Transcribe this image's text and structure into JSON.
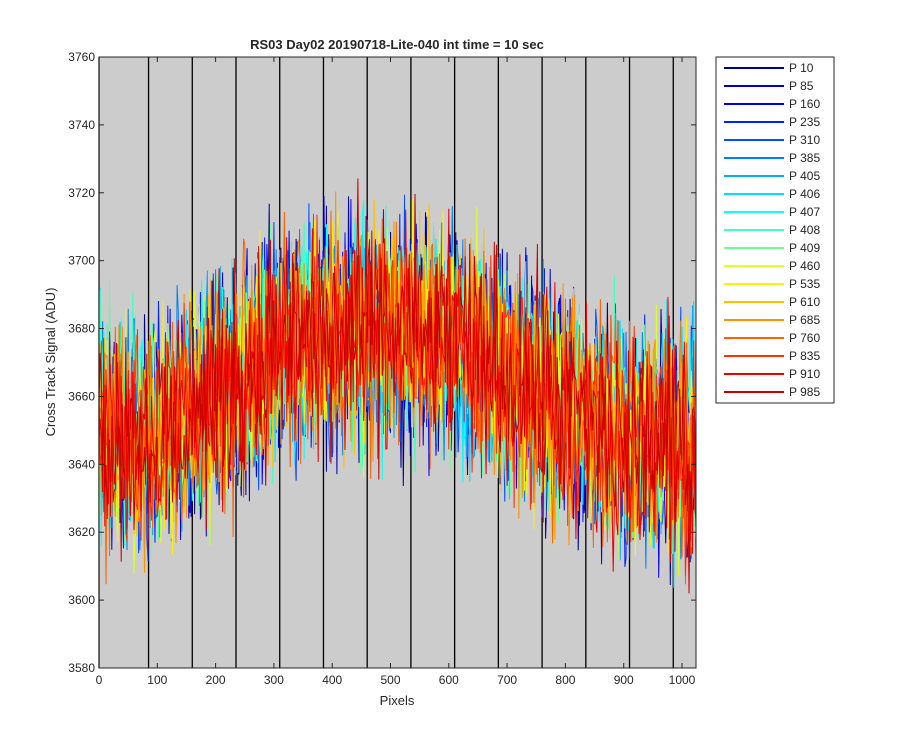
{
  "chart_data": {
    "type": "line",
    "title": "RS03 Day02 20190718-Lite-040 int time = 10 sec",
    "xlabel": "Pixels",
    "ylabel": "Cross Track Signal (ADU)",
    "xlim": [
      0,
      1024
    ],
    "ylim": [
      3580,
      3760
    ],
    "xticks": [
      0,
      100,
      200,
      300,
      400,
      500,
      600,
      700,
      800,
      900,
      1000
    ],
    "yticks": [
      3580,
      3600,
      3620,
      3640,
      3660,
      3680,
      3700,
      3720,
      3740,
      3760
    ],
    "grid": false,
    "legend_position": "outside-right",
    "background_color": "#cccccc",
    "vertical_markers": [
      0,
      85,
      160,
      235,
      310,
      385,
      460,
      535,
      610,
      685,
      760,
      835,
      910,
      985
    ],
    "noise_amplitude": 16,
    "series": [
      {
        "name": "P 10",
        "color": "#00008f",
        "x": [
          0,
          100,
          200,
          300,
          400,
          500,
          600,
          700,
          800,
          900,
          1024
        ],
        "y": [
          3650,
          3648,
          3660,
          3675,
          3678,
          3680,
          3676,
          3668,
          3655,
          3648,
          3645
        ]
      },
      {
        "name": "P 85",
        "color": "#0000bf",
        "x": [
          0,
          100,
          200,
          300,
          400,
          500,
          600,
          700,
          800,
          900,
          1024
        ],
        "y": [
          3649,
          3647,
          3659,
          3674,
          3677,
          3679,
          3675,
          3667,
          3654,
          3647,
          3644
        ]
      },
      {
        "name": "P 160",
        "color": "#0000ef",
        "x": [
          0,
          100,
          200,
          300,
          400,
          500,
          600,
          700,
          800,
          900,
          1024
        ],
        "y": [
          3651,
          3649,
          3661,
          3675,
          3679,
          3680,
          3676,
          3668,
          3656,
          3648,
          3646
        ]
      },
      {
        "name": "P 235",
        "color": "#0020ff",
        "x": [
          0,
          100,
          200,
          300,
          400,
          500,
          600,
          700,
          800,
          900,
          1024
        ],
        "y": [
          3650,
          3648,
          3660,
          3674,
          3678,
          3679,
          3675,
          3667,
          3655,
          3647,
          3645
        ]
      },
      {
        "name": "P 310",
        "color": "#0050ff",
        "x": [
          0,
          100,
          200,
          300,
          400,
          500,
          600,
          700,
          800,
          900,
          1024
        ],
        "y": [
          3649,
          3648,
          3659,
          3675,
          3677,
          3680,
          3676,
          3668,
          3654,
          3648,
          3644
        ]
      },
      {
        "name": "P 385",
        "color": "#0080ff",
        "x": [
          0,
          100,
          200,
          300,
          400,
          500,
          600,
          700,
          800,
          900,
          1024
        ],
        "y": [
          3651,
          3649,
          3661,
          3676,
          3679,
          3681,
          3677,
          3669,
          3656,
          3649,
          3646
        ]
      },
      {
        "name": "P 405",
        "color": "#00afff",
        "x": [
          0,
          100,
          200,
          300,
          400,
          500,
          600,
          700,
          800,
          900,
          1024
        ],
        "y": [
          3650,
          3647,
          3660,
          3675,
          3678,
          3680,
          3676,
          3668,
          3655,
          3648,
          3645
        ]
      },
      {
        "name": "P 406",
        "color": "#00dfff",
        "x": [
          0,
          100,
          200,
          300,
          400,
          500,
          600,
          700,
          800,
          900,
          1024
        ],
        "y": [
          3650,
          3648,
          3660,
          3674,
          3678,
          3679,
          3675,
          3667,
          3655,
          3647,
          3645
        ]
      },
      {
        "name": "P 407",
        "color": "#10ffef",
        "x": [
          0,
          100,
          200,
          300,
          400,
          500,
          600,
          700,
          800,
          900,
          1024
        ],
        "y": [
          3651,
          3649,
          3661,
          3675,
          3679,
          3680,
          3676,
          3668,
          3656,
          3648,
          3646
        ]
      },
      {
        "name": "P 408",
        "color": "#40ffbf",
        "x": [
          0,
          100,
          200,
          300,
          400,
          500,
          600,
          700,
          800,
          900,
          1024
        ],
        "y": [
          3650,
          3648,
          3660,
          3675,
          3678,
          3680,
          3676,
          3668,
          3655,
          3648,
          3645
        ]
      },
      {
        "name": "P 409",
        "color": "#70ff8f",
        "x": [
          0,
          100,
          200,
          300,
          400,
          500,
          600,
          700,
          800,
          900,
          1024
        ],
        "y": [
          3649,
          3647,
          3659,
          3674,
          3677,
          3679,
          3675,
          3667,
          3654,
          3647,
          3644
        ]
      },
      {
        "name": "P 460",
        "color": "#dfff20",
        "x": [
          0,
          100,
          200,
          300,
          400,
          500,
          600,
          700,
          800,
          900,
          1024
        ],
        "y": [
          3651,
          3649,
          3661,
          3676,
          3679,
          3681,
          3677,
          3669,
          3656,
          3649,
          3646
        ]
      },
      {
        "name": "P 535",
        "color": "#ffef00",
        "x": [
          0,
          100,
          200,
          300,
          400,
          500,
          600,
          700,
          800,
          900,
          1024
        ],
        "y": [
          3650,
          3648,
          3660,
          3675,
          3678,
          3680,
          3676,
          3668,
          3655,
          3648,
          3645
        ]
      },
      {
        "name": "P 610",
        "color": "#ffbf00",
        "x": [
          0,
          100,
          200,
          300,
          400,
          500,
          600,
          700,
          800,
          900,
          1024
        ],
        "y": [
          3650,
          3648,
          3660,
          3675,
          3678,
          3680,
          3676,
          3668,
          3655,
          3648,
          3645
        ]
      },
      {
        "name": "P 685",
        "color": "#ff9000",
        "x": [
          0,
          100,
          200,
          300,
          400,
          500,
          600,
          700,
          800,
          900,
          1024
        ],
        "y": [
          3651,
          3649,
          3661,
          3675,
          3679,
          3680,
          3676,
          3668,
          3656,
          3648,
          3646
        ]
      },
      {
        "name": "P 760",
        "color": "#ff6000",
        "x": [
          0,
          100,
          200,
          300,
          400,
          500,
          600,
          700,
          800,
          900,
          1024
        ],
        "y": [
          3650,
          3648,
          3660,
          3674,
          3678,
          3679,
          3675,
          3667,
          3655,
          3647,
          3645
        ]
      },
      {
        "name": "P 835",
        "color": "#ff3000",
        "x": [
          0,
          100,
          200,
          300,
          400,
          500,
          600,
          700,
          800,
          900,
          1024
        ],
        "y": [
          3649,
          3648,
          3659,
          3675,
          3677,
          3680,
          3676,
          3668,
          3654,
          3648,
          3644
        ]
      },
      {
        "name": "P 910",
        "color": "#ef0000",
        "x": [
          0,
          100,
          200,
          300,
          400,
          500,
          600,
          700,
          800,
          900,
          1024
        ],
        "y": [
          3650,
          3648,
          3660,
          3675,
          3678,
          3680,
          3676,
          3668,
          3655,
          3648,
          3645
        ]
      },
      {
        "name": "P 985",
        "color": "#c80000",
        "x": [
          0,
          100,
          200,
          300,
          400,
          500,
          600,
          700,
          800,
          900,
          1024
        ],
        "y": [
          3650,
          3649,
          3660,
          3675,
          3678,
          3680,
          3676,
          3668,
          3655,
          3648,
          3645
        ]
      }
    ]
  }
}
